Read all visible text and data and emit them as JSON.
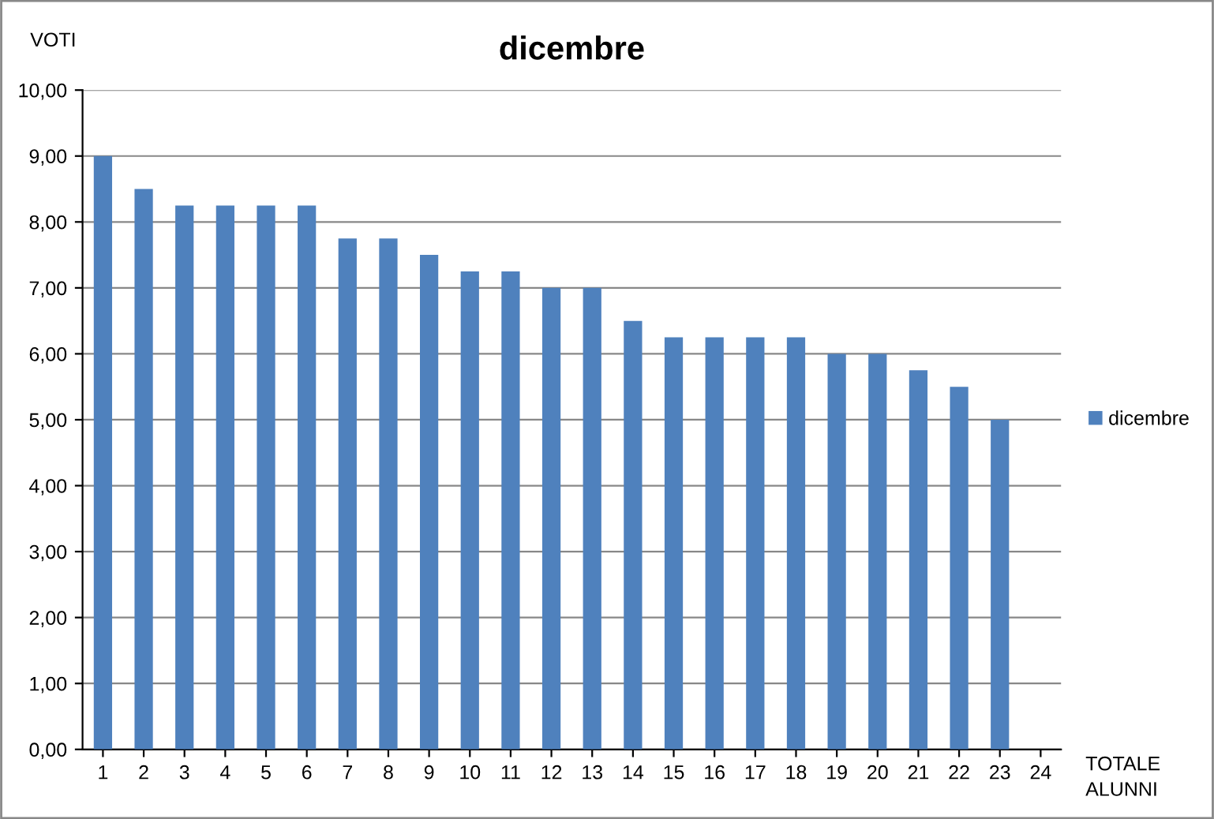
{
  "chart_data": {
    "type": "bar",
    "title": "dicembre",
    "ylabel": "VOTI",
    "xlabel": "TOTALE\nALUNNI",
    "categories": [
      "1",
      "2",
      "3",
      "4",
      "5",
      "6",
      "7",
      "8",
      "9",
      "10",
      "11",
      "12",
      "13",
      "14",
      "15",
      "16",
      "17",
      "18",
      "19",
      "20",
      "21",
      "22",
      "23",
      "24"
    ],
    "series": [
      {
        "name": "dicembre",
        "color": "#4f81bd",
        "values": [
          9,
          8.5,
          8.25,
          8.25,
          8.25,
          8.25,
          7.75,
          7.75,
          7.5,
          7.25,
          7.25,
          7,
          7,
          6.5,
          6.25,
          6.25,
          6.25,
          6.25,
          6,
          6,
          5.75,
          5.5,
          5,
          null
        ]
      }
    ],
    "ylim": [
      0,
      10
    ],
    "yticks": [
      {
        "value": 0,
        "label": "0,00"
      },
      {
        "value": 1,
        "label": "1,00"
      },
      {
        "value": 2,
        "label": "2,00"
      },
      {
        "value": 3,
        "label": "3,00"
      },
      {
        "value": 4,
        "label": "4,00"
      },
      {
        "value": 5,
        "label": "5,00"
      },
      {
        "value": 6,
        "label": "6,00"
      },
      {
        "value": 7,
        "label": "7,00"
      },
      {
        "value": 8,
        "label": "8,00"
      },
      {
        "value": 9,
        "label": "9,00"
      },
      {
        "value": 10,
        "label": "10,00"
      }
    ],
    "grid": "y",
    "legend": "right"
  }
}
